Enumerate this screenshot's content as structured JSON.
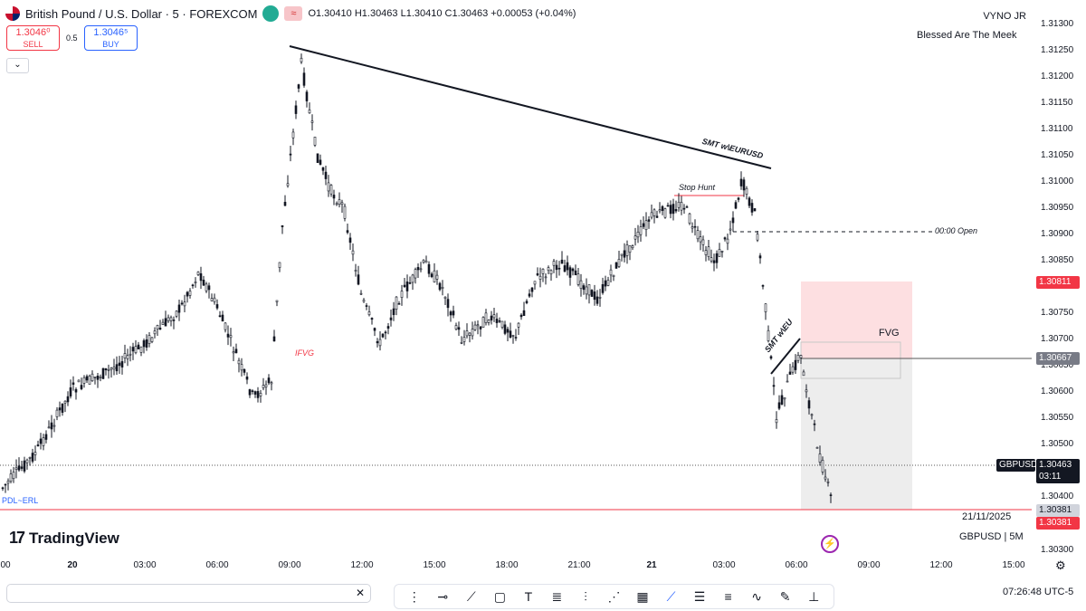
{
  "header": {
    "symbol_title": "British Pound / U.S. Dollar · 5 · FOREXCOM",
    "ohlc": "O1.30410 H1.30463 L1.30410 C1.30463 +0.00053 (+0.04%)",
    "wave_badge": "≈"
  },
  "trade": {
    "sell_price": "1.3046⁰",
    "sell_label": "SELL",
    "spread": "0.5",
    "buy_price": "1.3046⁵",
    "buy_label": "BUY",
    "collapse_glyph": "⌄"
  },
  "author": {
    "name": "VYNO JR",
    "motto": "Blessed Are The Meek"
  },
  "y_axis": {
    "ticks": [
      "1.31300",
      "1.31250",
      "1.31200",
      "1.31150",
      "1.31100",
      "1.31050",
      "1.31000",
      "1.30950",
      "1.30900",
      "1.30850",
      "1.30750",
      "1.30700",
      "1.30650",
      "1.30600",
      "1.30550",
      "1.30500",
      "1.30400",
      "1.30300"
    ],
    "tags": {
      "top_zone": "1.30811",
      "entry": "1.30667",
      "symbol": "GBPUSD",
      "last": "1.30463",
      "countdown": "03:11",
      "low_grey": "1.30381",
      "low_red": "1.30381"
    }
  },
  "x_axis": {
    "ticks": [
      {
        "label": "00",
        "bold": false
      },
      {
        "label": "20",
        "bold": true
      },
      {
        "label": "03:00",
        "bold": false
      },
      {
        "label": "06:00",
        "bold": false
      },
      {
        "label": "09:00",
        "bold": false
      },
      {
        "label": "12:00",
        "bold": false
      },
      {
        "label": "15:00",
        "bold": false
      },
      {
        "label": "18:00",
        "bold": false
      },
      {
        "label": "21:00",
        "bold": false
      },
      {
        "label": "21",
        "bold": true
      },
      {
        "label": "03:00",
        "bold": false
      },
      {
        "label": "06:00",
        "bold": false
      },
      {
        "label": "09:00",
        "bold": false
      },
      {
        "label": "12:00",
        "bold": false
      },
      {
        "label": "15:00",
        "bold": false
      }
    ]
  },
  "annotations": {
    "smt_eurusd": "SMT w\\EURUSD",
    "stop_hunt": "Stop Hunt",
    "open_line": "00:00 Open",
    "ifvg": "IFVG",
    "fvg": "FVG",
    "smt_eu": "SMT w\\EU",
    "pdl_erl": "PDL~ERL"
  },
  "footer": {
    "brand": "TradingView",
    "date": "21/11/2025",
    "symbol_interval": "GBPUSD | 5M",
    "clock": "07:26:48 UTC-5",
    "search_close": "✕"
  },
  "colors": {
    "up": "#131722",
    "down": "#131722",
    "red_level": "#f23645",
    "blue_text": "#2962ff",
    "zone_red": "#fddfe1",
    "zone_grey": "#ececec"
  },
  "icons": [
    "trend-line-icon",
    "brush-icon",
    "rectangle-icon",
    "text-icon",
    "fib-icon",
    "position-icon",
    "pattern-icon",
    "grid-icon",
    "ray-icon",
    "channel-icon",
    "parallel-icon",
    "curve-icon",
    "eraser-icon",
    "measure-icon"
  ]
}
